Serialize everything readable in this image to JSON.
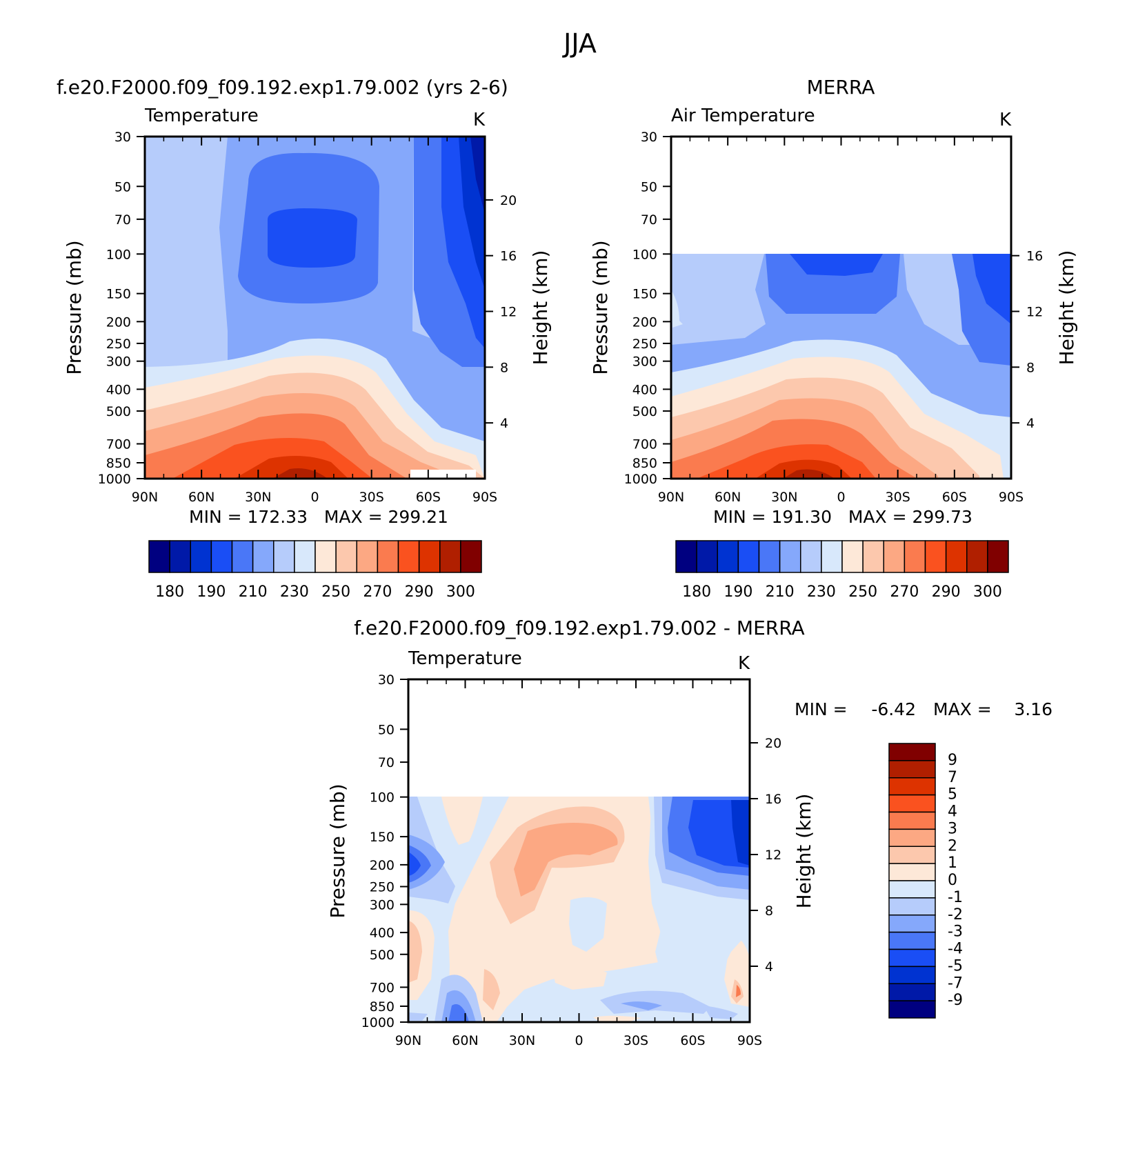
{
  "figure": {
    "title": "JJA"
  },
  "colors": {
    "abs_scale": [
      "#000080",
      "#0019a8",
      "#0033d1",
      "#1a4ef5",
      "#4a77f7",
      "#85a8fb",
      "#b6ccfb",
      "#d8e8fb",
      "#fde8d8",
      "#fcc8ad",
      "#fca883",
      "#fa7b4f",
      "#fa521f",
      "#dd3300",
      "#b01f00",
      "#800000"
    ],
    "diff_scale": [
      "#000080",
      "#0019a8",
      "#0033d1",
      "#1a4ef5",
      "#4a77f7",
      "#85a8fb",
      "#b6ccfb",
      "#d8e8fb",
      "#fde8d8",
      "#fcc8ad",
      "#fca883",
      "#fa7b4f",
      "#fa521f",
      "#dd3300",
      "#b01f00",
      "#800000"
    ]
  },
  "axis_common": {
    "pressure_label": "Pressure (mb)",
    "height_label": "Height (km)",
    "pressure_ticks": [
      "30",
      "50",
      "70",
      "100",
      "150",
      "200",
      "250",
      "300",
      "400",
      "500",
      "700",
      "850",
      "1000"
    ],
    "lat_ticks": [
      "90N",
      "60N",
      "30N",
      "0",
      "30S",
      "60S",
      "90S"
    ]
  },
  "panels": [
    {
      "id": "model",
      "title": "f.e20.F2000.f09_f09.192.exp1.79.002 (yrs 2-6)",
      "variable": "Temperature",
      "units": "K",
      "height_ticks": [
        "20",
        "16",
        "12",
        "8",
        "4"
      ],
      "min_max": "MIN = 172.33   MAX = 299.21",
      "colorbar_labels": [
        "180",
        "190",
        "210",
        "230",
        "250",
        "270",
        "290",
        "300"
      ]
    },
    {
      "id": "merra",
      "title": "MERRA",
      "variable": "Air Temperature",
      "units": "K",
      "height_ticks": [
        "16",
        "12",
        "8",
        "4"
      ],
      "min_max": "MIN = 191.30   MAX = 299.73",
      "colorbar_labels": [
        "180",
        "190",
        "210",
        "230",
        "250",
        "270",
        "290",
        "300"
      ]
    },
    {
      "id": "diff",
      "title": "f.e20.F2000.f09_f09.192.exp1.79.002 - MERRA",
      "variable": "Temperature",
      "units": "K",
      "height_ticks": [
        "20",
        "16",
        "12",
        "8",
        "4"
      ],
      "min_label": "MIN =",
      "min_value": "-6.42",
      "max_label": "MAX =",
      "max_value": "3.16",
      "colorbar_labels": [
        "9",
        "7",
        "5",
        "4",
        "3",
        "2",
        "1",
        "0",
        "-1",
        "-2",
        "-3",
        "-4",
        "-5",
        "-7",
        "-9"
      ]
    }
  ],
  "chart_data": [
    {
      "type": "heatmap",
      "title": "f.e20.F2000.f09_f09.192.exp1.79.002 (yrs 2-6)",
      "subtitle": "Temperature",
      "units": "K",
      "xlabel": "",
      "ylabel": "Pressure (mb)",
      "y2label": "Height (km)",
      "x_categories": [
        "90N",
        "60N",
        "30N",
        "0",
        "30S",
        "60S",
        "90S"
      ],
      "y_pressure": [
        30,
        50,
        70,
        100,
        150,
        200,
        250,
        300,
        400,
        500,
        700,
        850,
        1000
      ],
      "y2_height_km": [
        20,
        16,
        12,
        8,
        4
      ],
      "contour_levels": [
        180,
        185,
        190,
        200,
        210,
        220,
        230,
        240,
        250,
        260,
        270,
        280,
        290,
        295,
        300
      ],
      "min": 172.33,
      "max": 299.21
    },
    {
      "type": "heatmap",
      "title": "MERRA",
      "subtitle": "Air Temperature",
      "units": "K",
      "xlabel": "",
      "ylabel": "Pressure (mb)",
      "y2label": "Height (km)",
      "x_categories": [
        "90N",
        "60N",
        "30N",
        "0",
        "30S",
        "60S",
        "90S"
      ],
      "y_pressure": [
        30,
        50,
        70,
        100,
        150,
        200,
        250,
        300,
        400,
        500,
        700,
        850,
        1000
      ],
      "y2_height_km": [
        16,
        12,
        8,
        4
      ],
      "data_top_pressure": 100,
      "contour_levels": [
        180,
        185,
        190,
        200,
        210,
        220,
        230,
        240,
        250,
        260,
        270,
        280,
        290,
        295,
        300
      ],
      "min": 191.3,
      "max": 299.73
    },
    {
      "type": "heatmap",
      "title": "f.e20.F2000.f09_f09.192.exp1.79.002 - MERRA",
      "subtitle": "Temperature",
      "units": "K",
      "xlabel": "",
      "ylabel": "Pressure (mb)",
      "y2label": "Height (km)",
      "x_categories": [
        "90N",
        "60N",
        "30N",
        "0",
        "30S",
        "60S",
        "90S"
      ],
      "y_pressure": [
        30,
        50,
        70,
        100,
        150,
        200,
        250,
        300,
        400,
        500,
        700,
        850,
        1000
      ],
      "y2_height_km": [
        20,
        16,
        12,
        8,
        4
      ],
      "data_top_pressure": 100,
      "contour_levels": [
        -9,
        -7,
        -5,
        -4,
        -3,
        -2,
        -1,
        0,
        1,
        2,
        3,
        4,
        5,
        7,
        9
      ],
      "min": -6.42,
      "max": 3.16
    }
  ]
}
